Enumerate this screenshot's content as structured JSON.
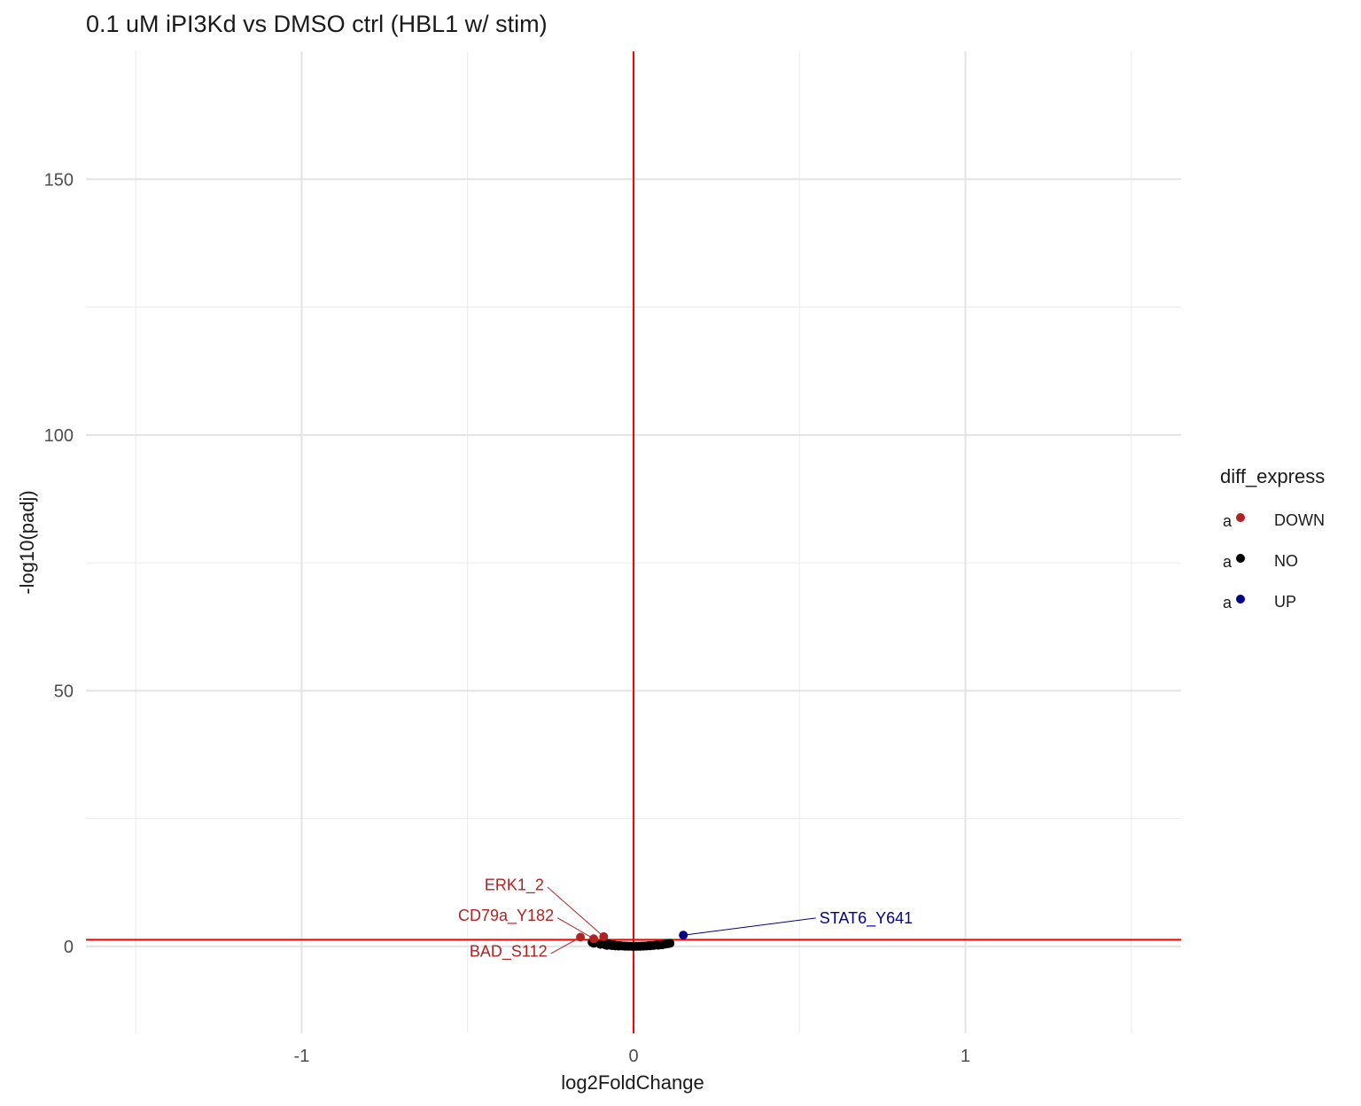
{
  "chart_data": {
    "type": "scatter",
    "title": "0.1 uM iPI3Kd vs DMSO ctrl (HBL1 w/ stim)",
    "xlabel": "log2FoldChange",
    "ylabel": "-log10(padj)",
    "xlim": [
      -1.65,
      1.65
    ],
    "ylim": [
      -17,
      175
    ],
    "x_ticks": [
      -1,
      0,
      1
    ],
    "x_tick_labels": [
      "-1",
      "0",
      "1"
    ],
    "y_ticks": [
      0,
      50,
      100,
      150
    ],
    "y_tick_labels": [
      "0",
      "50",
      "100",
      "150"
    ],
    "x_minor_grid": [
      -1.5,
      -0.5,
      0.5,
      1.5
    ],
    "y_minor_grid": [
      25,
      75,
      125
    ],
    "grid": true,
    "reference_lines": {
      "vertical_x": 0,
      "horizontal_y": 1.3,
      "color": "#ff0000"
    },
    "legend": {
      "title": "diff_express",
      "position": "right",
      "key_glyph_text": "a",
      "entries": [
        {
          "label": "DOWN",
          "color": "#b22222"
        },
        {
          "label": "NO",
          "color": "#000000"
        },
        {
          "label": "UP",
          "color": "#00008b"
        }
      ]
    },
    "series": [
      {
        "name": "DOWN",
        "color": "#b22222",
        "points": [
          {
            "x": -0.16,
            "y": 1.8
          },
          {
            "x": -0.12,
            "y": 1.5
          },
          {
            "x": -0.09,
            "y": 1.9
          }
        ]
      },
      {
        "name": "NO",
        "color": "#000000",
        "points": [
          {
            "x": -0.125,
            "y": 0.8
          },
          {
            "x": -0.12,
            "y": 0.6
          },
          {
            "x": -0.1,
            "y": 0.4
          },
          {
            "x": -0.09,
            "y": 0.6
          },
          {
            "x": -0.085,
            "y": 0.3
          },
          {
            "x": -0.08,
            "y": 0.2
          },
          {
            "x": -0.075,
            "y": 0.5
          },
          {
            "x": -0.07,
            "y": 0.25
          },
          {
            "x": -0.065,
            "y": 0.15
          },
          {
            "x": -0.06,
            "y": 0.35
          },
          {
            "x": -0.055,
            "y": 0.1
          },
          {
            "x": -0.05,
            "y": 0.2
          },
          {
            "x": -0.045,
            "y": 0.05
          },
          {
            "x": -0.04,
            "y": 0.15
          },
          {
            "x": -0.035,
            "y": 0.08
          },
          {
            "x": -0.03,
            "y": 0.1
          },
          {
            "x": -0.025,
            "y": 0.04
          },
          {
            "x": -0.02,
            "y": 0.06
          },
          {
            "x": -0.015,
            "y": 0.02
          },
          {
            "x": -0.01,
            "y": 0.05
          },
          {
            "x": -0.005,
            "y": 0.02
          },
          {
            "x": 0.0,
            "y": 0.01
          },
          {
            "x": 0.005,
            "y": 0.03
          },
          {
            "x": 0.01,
            "y": 0.02
          },
          {
            "x": 0.015,
            "y": 0.04
          },
          {
            "x": 0.02,
            "y": 0.02
          },
          {
            "x": 0.025,
            "y": 0.06
          },
          {
            "x": 0.03,
            "y": 0.05
          },
          {
            "x": 0.035,
            "y": 0.1
          },
          {
            "x": 0.04,
            "y": 0.08
          },
          {
            "x": 0.045,
            "y": 0.15
          },
          {
            "x": 0.05,
            "y": 0.12
          },
          {
            "x": 0.055,
            "y": 0.2
          },
          {
            "x": 0.06,
            "y": 0.18
          },
          {
            "x": 0.065,
            "y": 0.25
          },
          {
            "x": 0.07,
            "y": 0.3
          },
          {
            "x": 0.075,
            "y": 0.22
          },
          {
            "x": 0.08,
            "y": 0.35
          },
          {
            "x": 0.085,
            "y": 0.3
          },
          {
            "x": 0.09,
            "y": 0.4
          },
          {
            "x": 0.095,
            "y": 0.45
          },
          {
            "x": 0.1,
            "y": 0.5
          },
          {
            "x": 0.105,
            "y": 0.55
          },
          {
            "x": 0.11,
            "y": 0.6
          }
        ]
      },
      {
        "name": "UP",
        "color": "#00008b",
        "points": [
          {
            "x": 0.15,
            "y": 2.2
          }
        ]
      }
    ],
    "annotations": [
      {
        "text": "ERK1_2",
        "color": "#b22222",
        "x": -0.09,
        "y": 1.9,
        "label_x": -0.27,
        "label_y": 11
      },
      {
        "text": "CD79a_Y182",
        "color": "#b22222",
        "x": -0.12,
        "y": 1.5,
        "label_x": -0.24,
        "label_y": 5
      },
      {
        "text": "BAD_S112",
        "color": "#b22222",
        "x": -0.16,
        "y": 1.8,
        "label_x": -0.26,
        "label_y": -2
      },
      {
        "text": "STAT6_Y641",
        "color": "#00008b",
        "x": 0.15,
        "y": 2.2,
        "label_x": 0.56,
        "label_y": 4.5
      }
    ]
  }
}
